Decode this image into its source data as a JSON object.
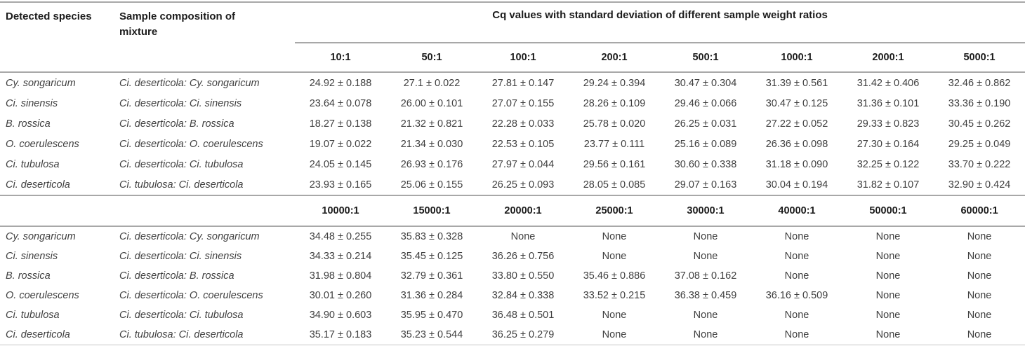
{
  "table": {
    "headers": {
      "species": "Detected species",
      "mixture": "Sample composition of mixture",
      "cq_group": "Cq values with standard deviation of different sample weight ratios"
    },
    "blocks": [
      {
        "ratio_headers": [
          "10:1",
          "50:1",
          "100:1",
          "200:1",
          "500:1",
          "1000:1",
          "2000:1",
          "5000:1"
        ],
        "rows": [
          {
            "species": "Cy. songaricum",
            "mixture": "Ci. deserticola: Cy. songaricum",
            "values": [
              "24.92 ± 0.188",
              "27.1 ± 0.022",
              "27.81 ± 0.147",
              "29.24 ± 0.394",
              "30.47 ± 0.304",
              "31.39 ± 0.561",
              "31.42 ± 0.406",
              "32.46 ± 0.862"
            ]
          },
          {
            "species": "Ci. sinensis",
            "mixture": "Ci. deserticola: Ci. sinensis",
            "values": [
              "23.64 ± 0.078",
              "26.00 ± 0.101",
              "27.07 ± 0.155",
              "28.26 ± 0.109",
              "29.46 ± 0.066",
              "30.47 ± 0.125",
              "31.36 ± 0.101",
              "33.36 ± 0.190"
            ]
          },
          {
            "species": "B. rossica",
            "mixture": "Ci. deserticola: B. rossica",
            "values": [
              "18.27 ± 0.138",
              "21.32 ± 0.821",
              "22.28 ± 0.033",
              "25.78 ± 0.020",
              "26.25 ± 0.031",
              "27.22 ± 0.052",
              "29.33 ± 0.823",
              "30.45 ± 0.262"
            ]
          },
          {
            "species": "O. coerulescens",
            "mixture": "Ci. deserticola: O. coerulescens",
            "values": [
              "19.07 ± 0.022",
              "21.34 ± 0.030",
              "22.53 ± 0.105",
              "23.77 ± 0.111",
              "25.16 ± 0.089",
              "26.36 ± 0.098",
              "27.30 ± 0.164",
              "29.25 ± 0.049"
            ]
          },
          {
            "species": "Ci. tubulosa",
            "mixture": "Ci. deserticola: Ci. tubulosa",
            "values": [
              "24.05 ± 0.145",
              "26.93 ± 0.176",
              "27.97 ± 0.044",
              "29.56 ± 0.161",
              "30.60 ± 0.338",
              "31.18 ± 0.090",
              "32.25 ± 0.122",
              "33.70 ± 0.222"
            ]
          },
          {
            "species": "Ci. deserticola",
            "mixture": "Ci. tubulosa: Ci. deserticola",
            "values": [
              "23.93 ± 0.165",
              "25.06 ± 0.155",
              "26.25 ± 0.093",
              "28.05 ± 0.085",
              "29.07 ± 0.163",
              "30.04 ± 0.194",
              "31.82 ± 0.107",
              "32.90 ± 0.424"
            ]
          }
        ]
      },
      {
        "ratio_headers": [
          "10000:1",
          "15000:1",
          "20000:1",
          "25000:1",
          "30000:1",
          "40000:1",
          "50000:1",
          "60000:1"
        ],
        "rows": [
          {
            "species": "Cy. songaricum",
            "mixture": "Ci. deserticola: Cy. songaricum",
            "values": [
              "34.48 ± 0.255",
              "35.83 ± 0.328",
              "None",
              "None",
              "None",
              "None",
              "None",
              "None"
            ]
          },
          {
            "species": "Ci. sinensis",
            "mixture": "Ci. deserticola: Ci. sinensis",
            "values": [
              "34.33 ± 0.214",
              "35.45 ± 0.125",
              "36.26 ± 0.756",
              "None",
              "None",
              "None",
              "None",
              "None"
            ]
          },
          {
            "species": "B. rossica",
            "mixture": "Ci. deserticola: B. rossica",
            "values": [
              "31.98 ± 0.804",
              "32.79 ± 0.361",
              "33.80 ± 0.550",
              "35.46 ± 0.886",
              "37.08 ± 0.162",
              "None",
              "None",
              "None"
            ]
          },
          {
            "species": "O. coerulescens",
            "mixture": "Ci. deserticola: O. coerulescens",
            "values": [
              "30.01 ± 0.260",
              "31.36 ± 0.284",
              "32.84 ± 0.338",
              "33.52 ± 0.215",
              "36.38 ± 0.459",
              "36.16 ± 0.509",
              "None",
              "None"
            ]
          },
          {
            "species": "Ci. tubulosa",
            "mixture": "Ci. deserticola: Ci. tubulosa",
            "values": [
              "34.90 ± 0.603",
              "35.95 ± 0.470",
              "36.48 ± 0.501",
              "None",
              "None",
              "None",
              "None",
              "None"
            ]
          },
          {
            "species": "Ci. deserticola",
            "mixture": "Ci. tubulosa: Ci. deserticola",
            "values": [
              "35.17 ± 0.183",
              "35.23 ± 0.544",
              "36.25 ± 0.279",
              "None",
              "None",
              "None",
              "None",
              "None"
            ]
          }
        ]
      }
    ],
    "colors": {
      "rule": "#a8a8a8",
      "rule_light": "#c6c6c6",
      "header_text": "#1c1c1c",
      "body_text": "#3f3f3f"
    }
  },
  "chart_data": {
    "type": "table",
    "title": "Cq values with standard deviation of different sample weight ratios",
    "columns": [
      "Detected species",
      "Sample composition of mixture",
      "10:1",
      "50:1",
      "100:1",
      "200:1",
      "500:1",
      "1000:1",
      "2000:1",
      "5000:1",
      "10000:1",
      "15000:1",
      "20000:1",
      "25000:1",
      "30000:1",
      "40000:1",
      "50000:1",
      "60000:1"
    ],
    "rows": [
      [
        "Cy. songaricum",
        "Ci. deserticola: Cy. songaricum",
        "24.92 ± 0.188",
        "27.1 ± 0.022",
        "27.81 ± 0.147",
        "29.24 ± 0.394",
        "30.47 ± 0.304",
        "31.39 ± 0.561",
        "31.42 ± 0.406",
        "32.46 ± 0.862",
        "34.48 ± 0.255",
        "35.83 ± 0.328",
        "None",
        "None",
        "None",
        "None",
        "None",
        "None"
      ],
      [
        "Ci. sinensis",
        "Ci. deserticola: Ci. sinensis",
        "23.64 ± 0.078",
        "26.00 ± 0.101",
        "27.07 ± 0.155",
        "28.26 ± 0.109",
        "29.46 ± 0.066",
        "30.47 ± 0.125",
        "31.36 ± 0.101",
        "33.36 ± 0.190",
        "34.33 ± 0.214",
        "35.45 ± 0.125",
        "36.26 ± 0.756",
        "None",
        "None",
        "None",
        "None",
        "None"
      ],
      [
        "B. rossica",
        "Ci. deserticola: B. rossica",
        "18.27 ± 0.138",
        "21.32 ± 0.821",
        "22.28 ± 0.033",
        "25.78 ± 0.020",
        "26.25 ± 0.031",
        "27.22 ± 0.052",
        "29.33 ± 0.823",
        "30.45 ± 0.262",
        "31.98 ± 0.804",
        "32.79 ± 0.361",
        "33.80 ± 0.550",
        "35.46 ± 0.886",
        "37.08 ± 0.162",
        "None",
        "None",
        "None"
      ],
      [
        "O. coerulescens",
        "Ci. deserticola: O. coerulescens",
        "19.07 ± 0.022",
        "21.34 ± 0.030",
        "22.53 ± 0.105",
        "23.77 ± 0.111",
        "25.16 ± 0.089",
        "26.36 ± 0.098",
        "27.30 ± 0.164",
        "29.25 ± 0.049",
        "30.01 ± 0.260",
        "31.36 ± 0.284",
        "32.84 ± 0.338",
        "33.52 ± 0.215",
        "36.38 ± 0.459",
        "36.16 ± 0.509",
        "None",
        "None"
      ],
      [
        "Ci. tubulosa",
        "Ci. deserticola: Ci. tubulosa",
        "24.05 ± 0.145",
        "26.93 ± 0.176",
        "27.97 ± 0.044",
        "29.56 ± 0.161",
        "30.60 ± 0.338",
        "31.18 ± 0.090",
        "32.25 ± 0.122",
        "33.70 ± 0.222",
        "34.90 ± 0.603",
        "35.95 ± 0.470",
        "36.48 ± 0.501",
        "None",
        "None",
        "None",
        "None",
        "None"
      ],
      [
        "Ci. deserticola",
        "Ci. tubulosa: Ci. deserticola",
        "23.93 ± 0.165",
        "25.06 ± 0.155",
        "26.25 ± 0.093",
        "28.05 ± 0.085",
        "29.07 ± 0.163",
        "30.04 ± 0.194",
        "31.82 ± 0.107",
        "32.90 ± 0.424",
        "35.17 ± 0.183",
        "35.23 ± 0.544",
        "36.25 ± 0.279",
        "None",
        "None",
        "None",
        "None",
        "None"
      ]
    ]
  }
}
